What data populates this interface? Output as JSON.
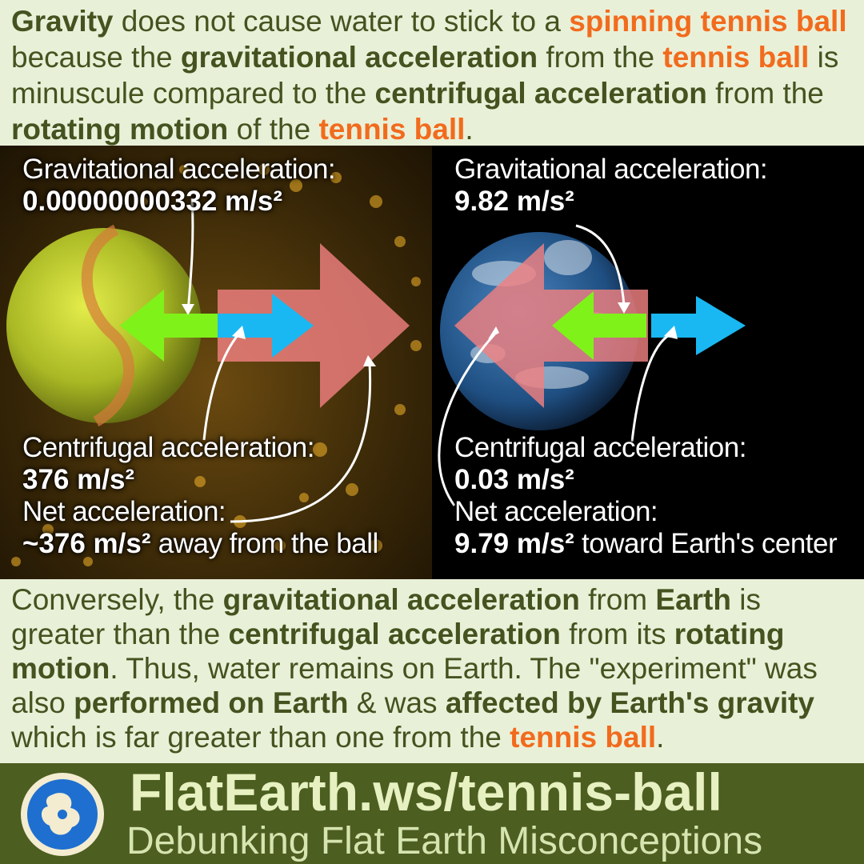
{
  "intro": {
    "parts": [
      {
        "text": "Gravity",
        "style": "b"
      },
      {
        "text": " does not cause water to stick to a ",
        "style": ""
      },
      {
        "text": "spinning tennis ball",
        "style": "o"
      },
      {
        "text": " because the ",
        "style": ""
      },
      {
        "text": "gravitational acceleration",
        "style": "b"
      },
      {
        "text": " from the ",
        "style": ""
      },
      {
        "text": "tennis ball",
        "style": "o"
      },
      {
        "text": " is minuscule compared to the ",
        "style": ""
      },
      {
        "text": "centrifugal acceleration",
        "style": "b"
      },
      {
        "text": " from the ",
        "style": ""
      },
      {
        "text": "rotating motion",
        "style": "b"
      },
      {
        "text": " of the ",
        "style": ""
      },
      {
        "text": "tennis ball",
        "style": "o"
      },
      {
        "text": ".",
        "style": ""
      }
    ]
  },
  "tennis_panel": {
    "grav_label": "Gravitational acceleration:",
    "grav_value": "0.00000000332 m/s²",
    "cent_label": "Centrifugal acceleration:",
    "cent_value": "376 m/s²",
    "net_label": "Net acceleration:",
    "net_value": "~376 m/s²",
    "net_tail": " away from the ball"
  },
  "earth_panel": {
    "grav_label": "Gravitational acceleration:",
    "grav_value": "9.82 m/s²",
    "cent_label": "Centrifugal acceleration:",
    "cent_value": "0.03 m/s²",
    "net_label": "Net acceleration:",
    "net_value": "9.79 m/s²",
    "net_tail": " toward Earth's center"
  },
  "outro": {
    "parts": [
      {
        "text": "Conversely, the ",
        "style": ""
      },
      {
        "text": "gravitational acceleration",
        "style": "b"
      },
      {
        "text": " from ",
        "style": ""
      },
      {
        "text": "Earth",
        "style": "b"
      },
      {
        "text": " is greater than the ",
        "style": ""
      },
      {
        "text": "centrifugal acceleration",
        "style": "b"
      },
      {
        "text": " from its ",
        "style": ""
      },
      {
        "text": "rotating motion",
        "style": "b"
      },
      {
        "text": ". Thus, water remains on Earth. The \"experiment\" was also ",
        "style": ""
      },
      {
        "text": "performed on Earth",
        "style": "b"
      },
      {
        "text": " & was ",
        "style": ""
      },
      {
        "text": "affected by Earth's gravity",
        "style": "b"
      },
      {
        "text": " which is far greater than one from the ",
        "style": ""
      },
      {
        "text": "tennis ball",
        "style": "o"
      },
      {
        "text": ".",
        "style": ""
      }
    ]
  },
  "footer": {
    "url": "FlatEarth.ws/tennis-ball",
    "subtitle": "Debunking Flat Earth Misconceptions",
    "logo_icon": "globe-logo-icon"
  },
  "colors": {
    "text_dark_green": "#44531f",
    "highlight_orange": "#f26b1d",
    "background": "#e9f0d8",
    "footer_bg": "#4c5e20",
    "gravity_arrow": "#7ff21a",
    "centrifugal_arrow": "#1ab8f2",
    "net_arrow": "#f08080"
  }
}
